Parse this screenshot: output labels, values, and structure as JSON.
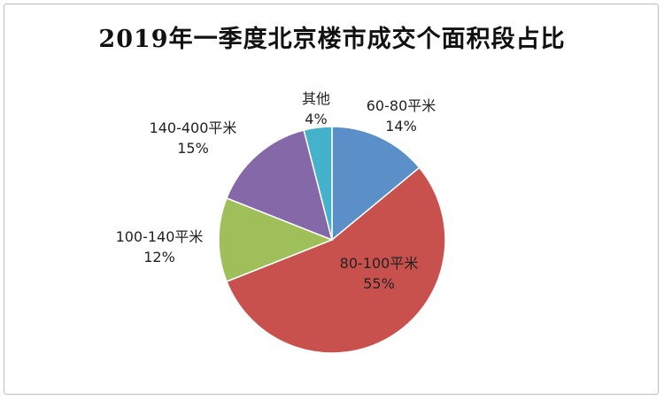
{
  "chart_data": {
    "type": "pie",
    "title": "2019年一季度北京楼市成交个面积段占比",
    "slices": [
      {
        "label": "60-80平米",
        "value": 14,
        "display": "14%",
        "color": "#5b8fc7"
      },
      {
        "label": "80-100平米",
        "value": 55,
        "display": "55%",
        "color": "#c9514d"
      },
      {
        "label": "100-140平米",
        "value": 12,
        "display": "12%",
        "color": "#9fbf5a"
      },
      {
        "label": "140-400平米",
        "value": 15,
        "display": "15%",
        "color": "#8468a8"
      },
      {
        "label": "其他",
        "value": 4,
        "display": "4%",
        "color": "#45b2cb"
      }
    ]
  }
}
